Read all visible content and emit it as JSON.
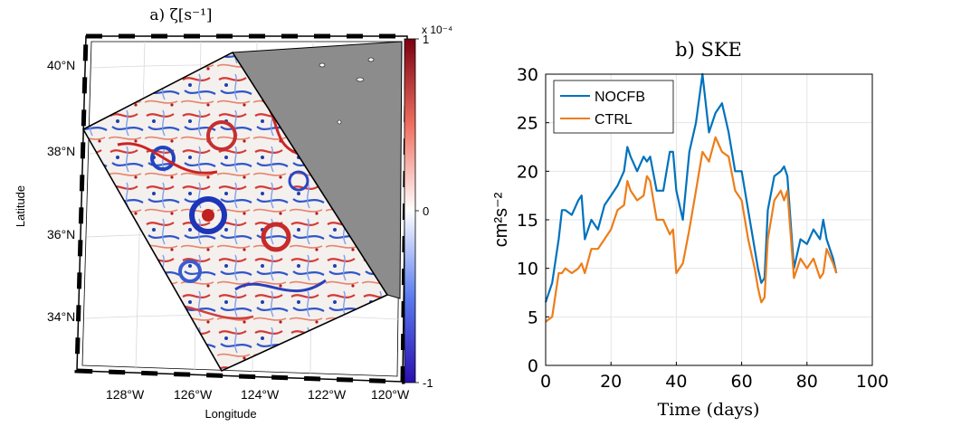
{
  "panel_a": {
    "title": "a) ζ[s⁻¹]",
    "xlabel": "Longitude",
    "ylabel": "Latitude",
    "lon_ticks": [
      "128°W",
      "126°W",
      "124°W",
      "122°W",
      "120°W"
    ],
    "lat_ticks": [
      "40°N",
      "38°N",
      "36°N",
      "34°N"
    ],
    "colorbar": {
      "exponent_label": "x 10⁻⁴",
      "ticks": [
        "1",
        "0",
        "-1"
      ],
      "range": [
        -1,
        1
      ],
      "colors": [
        "#2a0fb0",
        "#5a7cf0",
        "#ffffff",
        "#f07060",
        "#7a0010"
      ]
    },
    "land_color": "#8c8c8c"
  },
  "chart_data": {
    "type": "line",
    "title": "b) SKE",
    "xlabel": "Time (days)",
    "ylabel": "cm²s⁻²",
    "xlim": [
      0,
      100
    ],
    "ylim": [
      0,
      30
    ],
    "xticks": [
      0,
      20,
      40,
      60,
      80,
      100
    ],
    "yticks": [
      0,
      5,
      10,
      15,
      20,
      25,
      30
    ],
    "grid": true,
    "legend": "top-left",
    "x": [
      0,
      2,
      4,
      5,
      6,
      8,
      10,
      11,
      12,
      14,
      16,
      18,
      20,
      22,
      24,
      25,
      26,
      28,
      30,
      31,
      32,
      34,
      36,
      38,
      39,
      40,
      42,
      44,
      46,
      48,
      50,
      52,
      54,
      56,
      58,
      60,
      62,
      64,
      65,
      66,
      67,
      68,
      70,
      72,
      73,
      74,
      76,
      78,
      80,
      82,
      84,
      85,
      86,
      88,
      89
    ],
    "series": [
      {
        "name": "NOCFB",
        "color": "#0072bd",
        "values": [
          6.5,
          8.5,
          13,
          16,
          16,
          15.5,
          17,
          17.5,
          13,
          15,
          14,
          16.5,
          17.5,
          18.5,
          20,
          22.5,
          21.5,
          20,
          21.5,
          21,
          21.5,
          18,
          18,
          22,
          22,
          18,
          15,
          22,
          25,
          30,
          24,
          26,
          27,
          24,
          20,
          20,
          16,
          12,
          10,
          8.5,
          9,
          16,
          19.5,
          20,
          20.5,
          19.5,
          10,
          13,
          12.5,
          14,
          13,
          15,
          13,
          11,
          9.5
        ]
      },
      {
        "name": "CTRL",
        "color": "#ed7d1a",
        "values": [
          4.5,
          5,
          9.5,
          9.5,
          10,
          9.5,
          10,
          10.5,
          9.5,
          12,
          12,
          13,
          14,
          16,
          16.5,
          19,
          18,
          17,
          17.5,
          19.5,
          19,
          15,
          15,
          13.5,
          14,
          9.5,
          10.5,
          14,
          18,
          22,
          21,
          23.5,
          22,
          21.5,
          18,
          17,
          13,
          10,
          8,
          6.5,
          7,
          13,
          17,
          18,
          17,
          18,
          9,
          11,
          10,
          11,
          9,
          9.5,
          12,
          10.5,
          9.5
        ]
      }
    ]
  }
}
